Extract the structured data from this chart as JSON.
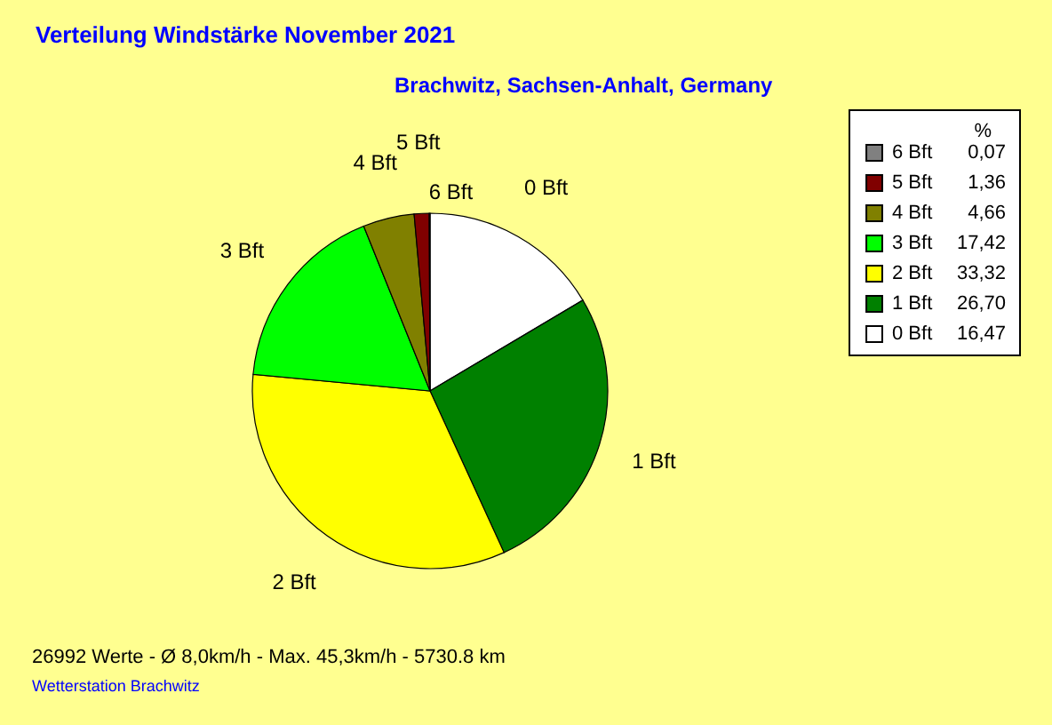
{
  "chart_data": {
    "type": "pie",
    "title": "Verteilung Windstärke  November 2021",
    "subtitle": "Brachwitz, Sachsen-Anhalt, Germany",
    "categories": [
      "0 Bft",
      "1 Bft",
      "2 Bft",
      "3 Bft",
      "4 Bft",
      "5 Bft",
      "6 Bft"
    ],
    "values": [
      16.47,
      26.7,
      33.32,
      17.42,
      4.66,
      1.36,
      0.07
    ],
    "value_labels": [
      "16,47",
      "26,70",
      "33,32",
      "17,42",
      "4,66",
      "1,36",
      "0,07"
    ],
    "colors": [
      "#ffffff",
      "#008000",
      "#ffff00",
      "#00ff00",
      "#808000",
      "#800000",
      "#808080"
    ],
    "legend": "top right",
    "legend_title": "%",
    "annotations": [
      "26992 Werte   -   Ø 8,0km/h  -  Max. 45,3km/h   -   5730.8 km",
      "Wetterstation Brachwitz"
    ]
  }
}
